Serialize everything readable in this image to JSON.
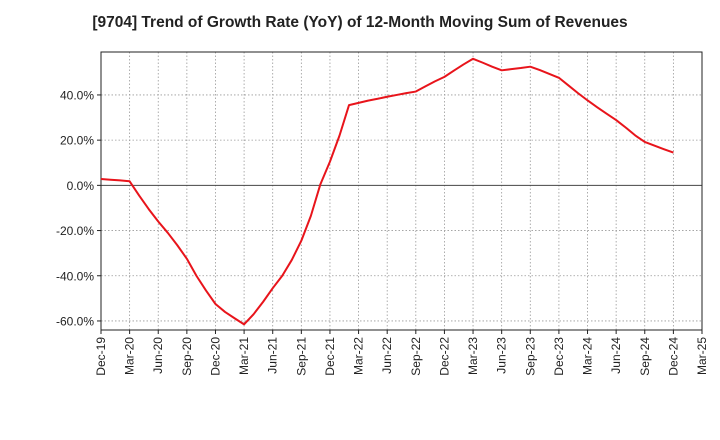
{
  "chart_data": {
    "type": "line",
    "title": "[9704]  Trend of Growth Rate (YoY) of 12-Month Moving Sum of Revenues",
    "xlabel": "",
    "ylabel": "",
    "x_ticks": [
      "Dec-19",
      "Mar-20",
      "Jun-20",
      "Sep-20",
      "Dec-20",
      "Mar-21",
      "Jun-21",
      "Sep-21",
      "Dec-21",
      "Mar-22",
      "Jun-22",
      "Sep-22",
      "Dec-22",
      "Mar-23",
      "Jun-23",
      "Sep-23",
      "Dec-23",
      "Mar-24",
      "Jun-24",
      "Sep-24",
      "Dec-24",
      "Mar-25"
    ],
    "y_ticks": [
      "40.0%",
      "20.0%",
      "0.0%",
      "-20.0%",
      "-40.0%",
      "-60.0%"
    ],
    "y_tick_values": [
      40,
      20,
      0,
      -20,
      -40,
      -60
    ],
    "ylim": [
      -64,
      59
    ],
    "grid": true,
    "line_color": "#e8141b",
    "series": [
      {
        "x": [
          "Dec-19",
          "Jan-20",
          "Feb-20",
          "Mar-20",
          "Apr-20",
          "May-20",
          "Jun-20",
          "Jul-20",
          "Aug-20",
          "Sep-20",
          "Oct-20",
          "Nov-20",
          "Dec-20",
          "Jan-21",
          "Feb-21",
          "Mar-21",
          "Apr-21",
          "May-21",
          "Jun-21",
          "Jul-21",
          "Aug-21",
          "Sep-21",
          "Oct-21",
          "Nov-21",
          "Dec-21",
          "Jan-22",
          "Feb-22",
          "Mar-22",
          "Apr-22",
          "May-22",
          "Jun-22",
          "Jul-22",
          "Aug-22",
          "Sep-22",
          "Oct-22",
          "Nov-22",
          "Dec-22",
          "Jan-23",
          "Feb-23",
          "Mar-23",
          "Apr-23",
          "May-23",
          "Jun-23",
          "Jul-23",
          "Aug-23",
          "Sep-23",
          "Oct-23",
          "Nov-23",
          "Dec-23",
          "Jan-24",
          "Feb-24",
          "Mar-24",
          "Apr-24",
          "May-24",
          "Jun-24",
          "Jul-24",
          "Aug-24",
          "Sep-24",
          "Oct-24",
          "Nov-24",
          "Dec-24"
        ],
        "values": [
          2.8,
          2.5,
          2.2,
          1.8,
          -4.5,
          -10.5,
          -16.0,
          -21.0,
          -26.5,
          -32.5,
          -40.0,
          -46.5,
          -52.5,
          -56.0,
          -58.8,
          -61.5,
          -57.0,
          -51.5,
          -45.5,
          -40.0,
          -33.0,
          -24.5,
          -13.5,
          0.5,
          10.5,
          22.0,
          35.5,
          36.5,
          37.5,
          38.3,
          39.2,
          40.0,
          40.8,
          41.5,
          43.8,
          46.0,
          48.0,
          50.8,
          53.5,
          56.0,
          54.3,
          52.5,
          50.9,
          51.4,
          51.9,
          52.5,
          51.0,
          49.3,
          47.6,
          44.2,
          40.8,
          37.6,
          34.6,
          31.7,
          28.9,
          25.6,
          22.1,
          19.2,
          17.6,
          16.0,
          14.5
        ]
      }
    ]
  }
}
